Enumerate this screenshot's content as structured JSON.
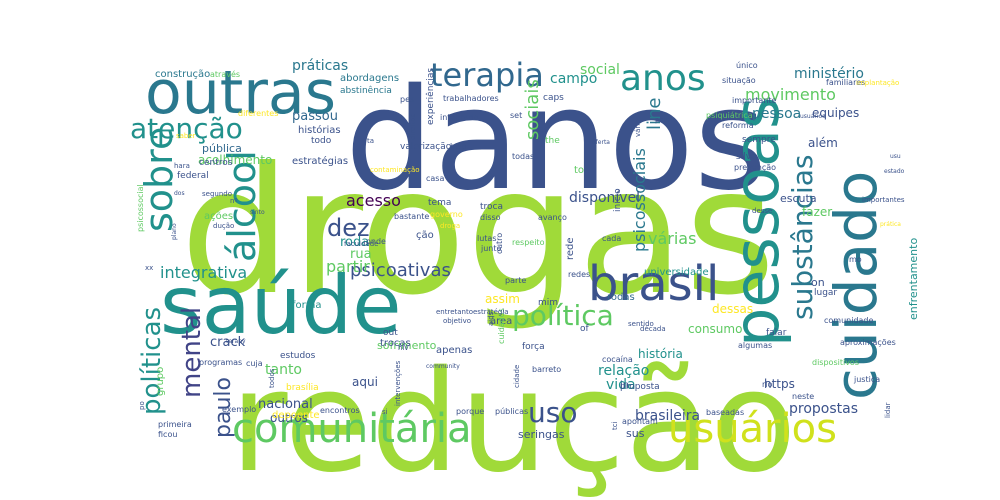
{
  "word_cloud": {
    "background": "#ffffff",
    "palette": [
      "#440154",
      "#3b528b",
      "#21918c",
      "#5ec962",
      "#a0da39",
      "#fde725"
    ],
    "words": [
      {
        "text": "drogas",
        "color": "#a0da39"
      },
      {
        "text": "redução",
        "color": "#a0da39"
      },
      {
        "text": "danos",
        "color": "#3b528b"
      },
      {
        "text": "saúde",
        "color": "#21918c"
      },
      {
        "text": "outras",
        "color": "#2a788e"
      },
      {
        "text": "pessoas",
        "color": "#21918c"
      },
      {
        "text": "cuidado",
        "color": "#2a788e"
      },
      {
        "text": "comunitária",
        "color": "#5ec962"
      },
      {
        "text": "usuários",
        "color": "#d0e11c"
      },
      {
        "text": "brasil",
        "color": "#3b528b"
      },
      {
        "text": "álcool",
        "color": "#21918c"
      },
      {
        "text": "sobre",
        "color": "#21918c"
      },
      {
        "text": "terapia",
        "color": "#31688e"
      },
      {
        "text": "anos",
        "color": "#21918c"
      },
      {
        "text": "atenção",
        "color": "#21918c"
      },
      {
        "text": "política",
        "color": "#5ec962"
      },
      {
        "text": "substâncias",
        "color": "#2a788e"
      },
      {
        "text": "mental",
        "color": "#414487"
      },
      {
        "text": "políticas",
        "color": "#21918c"
      },
      {
        "text": "uso",
        "color": "#3b528b"
      },
      {
        "text": "paulo",
        "color": "#3b528b"
      },
      {
        "text": "dez",
        "color": "#3b528b"
      },
      {
        "text": "sociais",
        "color": "#5ec962"
      },
      {
        "text": "psicossociais",
        "color": "#2a788e"
      },
      {
        "text": "line",
        "color": "#2a788e"
      },
      {
        "text": "psicoativas",
        "color": "#3b528b"
      },
      {
        "text": "integrativa",
        "color": "#21918c"
      },
      {
        "text": "acesso",
        "color": "#440154"
      },
      {
        "text": "partir",
        "color": "#5ec962"
      },
      {
        "text": "várias",
        "color": "#5ec962"
      },
      {
        "text": "movimento",
        "color": "#5ec962"
      },
      {
        "text": "pessoa",
        "color": "#2a788e"
      },
      {
        "text": "ministério",
        "color": "#2a788e"
      },
      {
        "text": "práticas",
        "color": "#2a788e"
      },
      {
        "text": "social",
        "color": "#5ec962"
      },
      {
        "text": "campo",
        "color": "#21918c"
      },
      {
        "text": "disponível",
        "color": "#3b528b"
      },
      {
        "text": "enfrentamento",
        "color": "#21918c"
      },
      {
        "text": "propostas",
        "color": "#3b528b"
      },
      {
        "text": "brasileira",
        "color": "#3b528b"
      },
      {
        "text": "relação",
        "color": "#21918c"
      },
      {
        "text": "vida",
        "color": "#21918c"
      },
      {
        "text": "tanto",
        "color": "#5ec962"
      },
      {
        "text": "nacional",
        "color": "#3b528b"
      },
      {
        "text": "crack",
        "color": "#3b528b"
      },
      {
        "text": "roda",
        "color": "#21918c"
      },
      {
        "text": "rua",
        "color": "#5ec962"
      },
      {
        "text": "passou",
        "color": "#31688e"
      },
      {
        "text": "pública",
        "color": "#31688e"
      },
      {
        "text": "acolhimento",
        "color": "#5ec962"
      },
      {
        "text": "histórias",
        "color": "#3b528b"
      },
      {
        "text": "estratégias",
        "color": "#3b528b"
      },
      {
        "text": "equipes",
        "color": "#3b528b"
      },
      {
        "text": "além",
        "color": "#3b528b"
      },
      {
        "text": "fazer",
        "color": "#5ec962"
      },
      {
        "text": "escuta",
        "color": "#3b528b"
      },
      {
        "text": "https",
        "color": "#3b528b"
      },
      {
        "text": "história",
        "color": "#21918c"
      },
      {
        "text": "consumo",
        "color": "#5ec962"
      },
      {
        "text": "dessas",
        "color": "#fde725"
      },
      {
        "text": "seringas",
        "color": "#3b528b"
      },
      {
        "text": "sus",
        "color": "#3b528b"
      },
      {
        "text": "aqui",
        "color": "#3b528b"
      },
      {
        "text": "outros",
        "color": "#3b528b"
      },
      {
        "text": "sofrimento",
        "color": "#5ec962"
      },
      {
        "text": "assim",
        "color": "#fde725"
      },
      {
        "text": "rodas",
        "color": "#31688e"
      },
      {
        "text": "universidade",
        "color": "#21918c"
      },
      {
        "text": "construção",
        "color": "#2a788e"
      },
      {
        "text": "através",
        "color": "#5ec962"
      },
      {
        "text": "abordagens",
        "color": "#2a788e"
      },
      {
        "text": "abstinência",
        "color": "#2a788e"
      },
      {
        "text": "experiências",
        "color": "#3b528b"
      },
      {
        "text": "caps",
        "color": "#3b528b"
      },
      {
        "text": "único",
        "color": "#3b528b"
      },
      {
        "text": "familiares",
        "color": "#3b528b"
      },
      {
        "text": "implantação",
        "color": "#fde725"
      },
      {
        "text": "situação",
        "color": "#3b528b"
      },
      {
        "text": "importante",
        "color": "#3b528b"
      },
      {
        "text": "sempre",
        "color": "#3b528b"
      },
      {
        "text": "reforma",
        "color": "#3b528b"
      },
      {
        "text": "silva",
        "color": "#3b528b"
      },
      {
        "text": "prevenção",
        "color": "#3b528b"
      },
      {
        "text": "psiquiátrica",
        "color": "#5ec962"
      },
      {
        "text": "diferentes",
        "color": "#fde725"
      },
      {
        "text": "trabalhadores",
        "color": "#3b528b"
      },
      {
        "text": "integrado",
        "color": "#3b528b"
      },
      {
        "text": "set",
        "color": "#3b528b"
      },
      {
        "text": "todas",
        "color": "#3b528b"
      },
      {
        "text": "http",
        "color": "#3b528b"
      },
      {
        "text": "valorização",
        "color": "#3b528b"
      },
      {
        "text": "casa",
        "color": "#3b528b"
      },
      {
        "text": "contaminação",
        "color": "#fde725"
      },
      {
        "text": "centros",
        "color": "#3b528b"
      },
      {
        "text": "federal",
        "color": "#3b528b"
      },
      {
        "text": "ações",
        "color": "#5ec962"
      },
      {
        "text": "tema",
        "color": "#3b528b"
      },
      {
        "text": "governo",
        "color": "#fde725"
      },
      {
        "text": "bastante",
        "color": "#3b528b"
      },
      {
        "text": "troca",
        "color": "#3b528b"
      },
      {
        "text": "disso",
        "color": "#3b528b"
      },
      {
        "text": "avanço",
        "color": "#3b528b"
      },
      {
        "text": "lutas",
        "color": "#3b528b"
      },
      {
        "text": "junto",
        "color": "#3b528b"
      },
      {
        "text": "respeito",
        "color": "#5ec962"
      },
      {
        "text": "cada",
        "color": "#3b528b"
      },
      {
        "text": "rede",
        "color": "#3b528b"
      },
      {
        "text": "outro",
        "color": "#3b528b"
      },
      {
        "text": "início",
        "color": "#3b528b"
      },
      {
        "text": "ção",
        "color": "#3b528b"
      },
      {
        "text": "onde",
        "color": "#3b528b"
      },
      {
        "text": "forma",
        "color": "#21918c"
      },
      {
        "text": "parte",
        "color": "#3b528b"
      },
      {
        "text": "mim",
        "color": "#3b528b"
      },
      {
        "text": "apenas",
        "color": "#3b528b"
      },
      {
        "text": "trocas",
        "color": "#3b528b"
      },
      {
        "text": "área",
        "color": "#3b528b"
      },
      {
        "text": "cuidados",
        "color": "#5ec962"
      },
      {
        "text": "força",
        "color": "#3b528b"
      },
      {
        "text": "estudos",
        "color": "#3b528b"
      },
      {
        "text": "cocaína",
        "color": "#3b528b"
      },
      {
        "text": "proposta",
        "color": "#3b528b"
      },
      {
        "text": "depoente",
        "color": "#fde725"
      },
      {
        "text": "encontros",
        "color": "#3b528b"
      },
      {
        "text": "exemplo",
        "color": "#3b528b"
      },
      {
        "text": "primeira",
        "color": "#3b528b"
      },
      {
        "text": "ficou",
        "color": "#3b528b"
      },
      {
        "text": "públicas",
        "color": "#3b528b"
      },
      {
        "text": "apontam",
        "color": "#3b528b"
      },
      {
        "text": "baseadas",
        "color": "#3b528b"
      },
      {
        "text": "neste",
        "color": "#3b528b"
      },
      {
        "text": "lugar",
        "color": "#3b528b"
      },
      {
        "text": "comunidade",
        "color": "#3b528b"
      },
      {
        "text": "aproximações",
        "color": "#3b528b"
      },
      {
        "text": "dispositivos",
        "color": "#5ec962"
      },
      {
        "text": "justiça",
        "color": "#3b528b"
      },
      {
        "text": "rio",
        "color": "#3b528b"
      },
      {
        "text": "algumas",
        "color": "#3b528b"
      },
      {
        "text": "falar",
        "color": "#3b528b"
      },
      {
        "text": "brasília",
        "color": "#fde725"
      },
      {
        "text": "grupo",
        "color": "#5ec962"
      },
      {
        "text": "programas",
        "color": "#3b528b"
      },
      {
        "text": "cuja",
        "color": "#3b528b"
      },
      {
        "text": "redes",
        "color": "#3b528b"
      },
      {
        "text": "entretanto",
        "color": "#3b528b"
      },
      {
        "text": "estratégia",
        "color": "#3b528b"
      },
      {
        "text": "objetivo",
        "color": "#3b528b"
      },
      {
        "text": "sentido",
        "color": "#3b528b"
      },
      {
        "text": "década",
        "color": "#3b528b"
      },
      {
        "text": "porque",
        "color": "#3b528b"
      },
      {
        "text": "barreto",
        "color": "#3b528b"
      },
      {
        "text": "intervenções",
        "color": "#3b528b"
      },
      {
        "text": "segundo",
        "color": "#3b528b"
      },
      {
        "text": "faculdade",
        "color": "#3b528b"
      },
      {
        "text": "psicossocial",
        "color": "#5ec962"
      },
      {
        "text": "hara",
        "color": "#3b528b"
      },
      {
        "text": "todo",
        "color": "#3b528b"
      },
      {
        "text": "es",
        "color": "#3b528b"
      },
      {
        "text": "the",
        "color": "#5ec962"
      },
      {
        "text": "to",
        "color": "#5ec962"
      },
      {
        "text": "on",
        "color": "#3b528b"
      },
      {
        "text": "in",
        "color": "#3b528b"
      },
      {
        "text": "of",
        "color": "#3b528b"
      },
      {
        "text": "out",
        "color": "#3b528b"
      },
      {
        "text": "pes",
        "color": "#3b528b"
      },
      {
        "text": "pois",
        "color": "#3b528b"
      },
      {
        "text": "mo",
        "color": "#3b528b"
      },
      {
        "text": "hiv",
        "color": "#3b528b"
      },
      {
        "text": "si",
        "color": "#3b528b"
      },
      {
        "text": "ta",
        "color": "#3b528b"
      },
      {
        "text": "nº",
        "color": "#3b528b"
      },
      {
        "text": "vários",
        "color": "#3b528b"
      },
      {
        "text": "importantes",
        "color": "#3b528b"
      },
      {
        "text": "lidar",
        "color": "#3b528b"
      },
      {
        "text": "prática",
        "color": "#fde725"
      },
      {
        "text": "droga",
        "color": "#fde725"
      },
      {
        "text": "cidade",
        "color": "#3b528b"
      },
      {
        "text": "desse",
        "color": "#3b528b"
      },
      {
        "text": "usu",
        "color": "#3b528b"
      },
      {
        "text": "estado",
        "color": "#3b528b"
      },
      {
        "text": "plano",
        "color": "#3b528b"
      },
      {
        "text": "dução",
        "color": "#3b528b"
      },
      {
        "text": "sinto",
        "color": "#3b528b"
      },
      {
        "text": "dos",
        "color": "#3b528b"
      },
      {
        "text": "saber",
        "color": "#fde725"
      },
      {
        "text": "direitos",
        "color": "#3b528b"
      },
      {
        "text": "aids",
        "color": "#3b528b"
      },
      {
        "text": "tci",
        "color": "#3b528b"
      },
      {
        "text": "oferta",
        "color": "#3b528b"
      },
      {
        "text": "community",
        "color": "#3b528b"
      },
      {
        "text": "terapy",
        "color": "#3b528b"
      },
      {
        "text": "usuarios",
        "color": "#3b528b"
      },
      {
        "text": "xx",
        "color": "#3b528b"
      },
      {
        "text": "po",
        "color": "#3b528b"
      },
      {
        "text": "todos",
        "color": "#3b528b"
      },
      {
        "text": "ações2",
        "color": "#3b528b"
      }
    ]
  }
}
